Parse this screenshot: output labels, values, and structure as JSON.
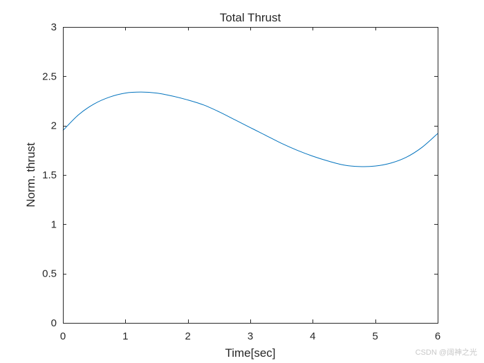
{
  "chart_data": {
    "type": "line",
    "title": "Total Thrust",
    "xlabel": "Time[sec]",
    "ylabel": "Norm. thrust",
    "xlim": [
      0,
      6
    ],
    "ylim": [
      0,
      3
    ],
    "xticks": [
      0,
      1,
      2,
      3,
      4,
      5,
      6
    ],
    "yticks": [
      0,
      0.5,
      1,
      1.5,
      2,
      2.5,
      3
    ],
    "xtick_labels": [
      "0",
      "1",
      "2",
      "3",
      "4",
      "5",
      "6"
    ],
    "ytick_labels": [
      "0",
      "0.5",
      "1",
      "1.5",
      "2",
      "2.5",
      "3"
    ],
    "grid": false,
    "box": true,
    "series": [
      {
        "color": "#0072bd",
        "x": [
          0,
          0.25,
          0.5,
          0.75,
          1,
          1.25,
          1.5,
          1.75,
          2,
          2.25,
          2.5,
          2.75,
          3,
          3.25,
          3.5,
          3.75,
          4,
          4.25,
          4.5,
          4.75,
          5,
          5.25,
          5.5,
          5.75,
          6
        ],
        "y": [
          1.95,
          2.11,
          2.22,
          2.29,
          2.33,
          2.34,
          2.33,
          2.3,
          2.26,
          2.21,
          2.14,
          2.06,
          1.98,
          1.9,
          1.82,
          1.75,
          1.69,
          1.64,
          1.6,
          1.585,
          1.59,
          1.62,
          1.68,
          1.78,
          1.92
        ]
      }
    ]
  },
  "watermark": "CSDN @阔神之光"
}
